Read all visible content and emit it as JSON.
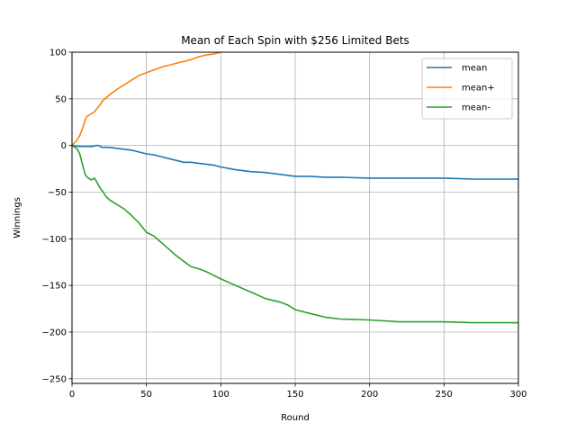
{
  "chart_data": {
    "type": "line",
    "title": "Mean of Each Spin with $256 Limited Bets",
    "xlabel": "Round",
    "ylabel": "Winnings",
    "xlim": [
      0,
      300
    ],
    "ylim": [
      -255,
      100
    ],
    "x_ticks": [
      0,
      50,
      100,
      150,
      200,
      250,
      300
    ],
    "y_ticks": [
      100,
      50,
      0,
      -50,
      -100,
      -150,
      -200,
      -250
    ],
    "x_tick_labels": [
      "0",
      "50",
      "100",
      "150",
      "200",
      "250",
      "300"
    ],
    "y_tick_labels": [
      "100",
      "50",
      "0",
      "−50",
      "−100",
      "−150",
      "−200",
      "−250"
    ],
    "grid": true,
    "legend_position": "top-right",
    "series": [
      {
        "name": "mean",
        "color": "#1f77b4",
        "x": [
          0,
          5,
          10,
          14,
          16,
          18,
          20,
          25,
          30,
          35,
          40,
          45,
          50,
          55,
          60,
          65,
          70,
          75,
          80,
          85,
          90,
          95,
          100,
          110,
          120,
          130,
          140,
          145,
          150,
          160,
          170,
          180,
          200,
          220,
          250,
          270,
          300
        ],
        "y": [
          0,
          -1,
          -1,
          -1,
          0,
          0,
          -2,
          -2,
          -3,
          -4,
          -5,
          -7,
          -9,
          -10,
          -12,
          -14,
          -16,
          -18,
          -18,
          -19,
          -20,
          -21,
          -23,
          -26,
          -28,
          -29,
          -31,
          -32,
          -33,
          -33,
          -34,
          -34,
          -35,
          -35,
          -35,
          -36,
          -36
        ]
      },
      {
        "name": "mean+",
        "color": "#ff7f0e",
        "x": [
          0,
          3,
          5,
          7,
          9,
          10,
          12,
          15,
          17,
          19,
          20,
          22,
          25,
          30,
          35,
          40,
          45,
          50,
          55,
          60,
          65,
          70,
          75,
          80,
          85,
          90,
          95,
          100
        ],
        "y": [
          0,
          5,
          10,
          18,
          28,
          31,
          33,
          36,
          40,
          44,
          47,
          50,
          54,
          60,
          65,
          70,
          75,
          78,
          81,
          84,
          86,
          88,
          90,
          92,
          95,
          97,
          98,
          100
        ]
      },
      {
        "name": "mean-",
        "color": "#2ca02c",
        "x": [
          0,
          3,
          5,
          7,
          9,
          11,
          13,
          15,
          17,
          19,
          21,
          23,
          25,
          30,
          35,
          40,
          45,
          50,
          55,
          60,
          65,
          70,
          75,
          80,
          85,
          90,
          95,
          100,
          110,
          120,
          130,
          140,
          145,
          150,
          160,
          170,
          180,
          200,
          220,
          250,
          270,
          300
        ],
        "y": [
          0,
          -3,
          -8,
          -20,
          -32,
          -35,
          -37,
          -35,
          -40,
          -46,
          -50,
          -55,
          -58,
          -63,
          -68,
          -75,
          -83,
          -93,
          -97,
          -104,
          -111,
          -118,
          -124,
          -130,
          -132,
          -135,
          -139,
          -143,
          -150,
          -157,
          -164,
          -168,
          -171,
          -176,
          -180,
          -184,
          -186,
          -187,
          -189,
          -189,
          -190,
          -190
        ]
      }
    ]
  }
}
